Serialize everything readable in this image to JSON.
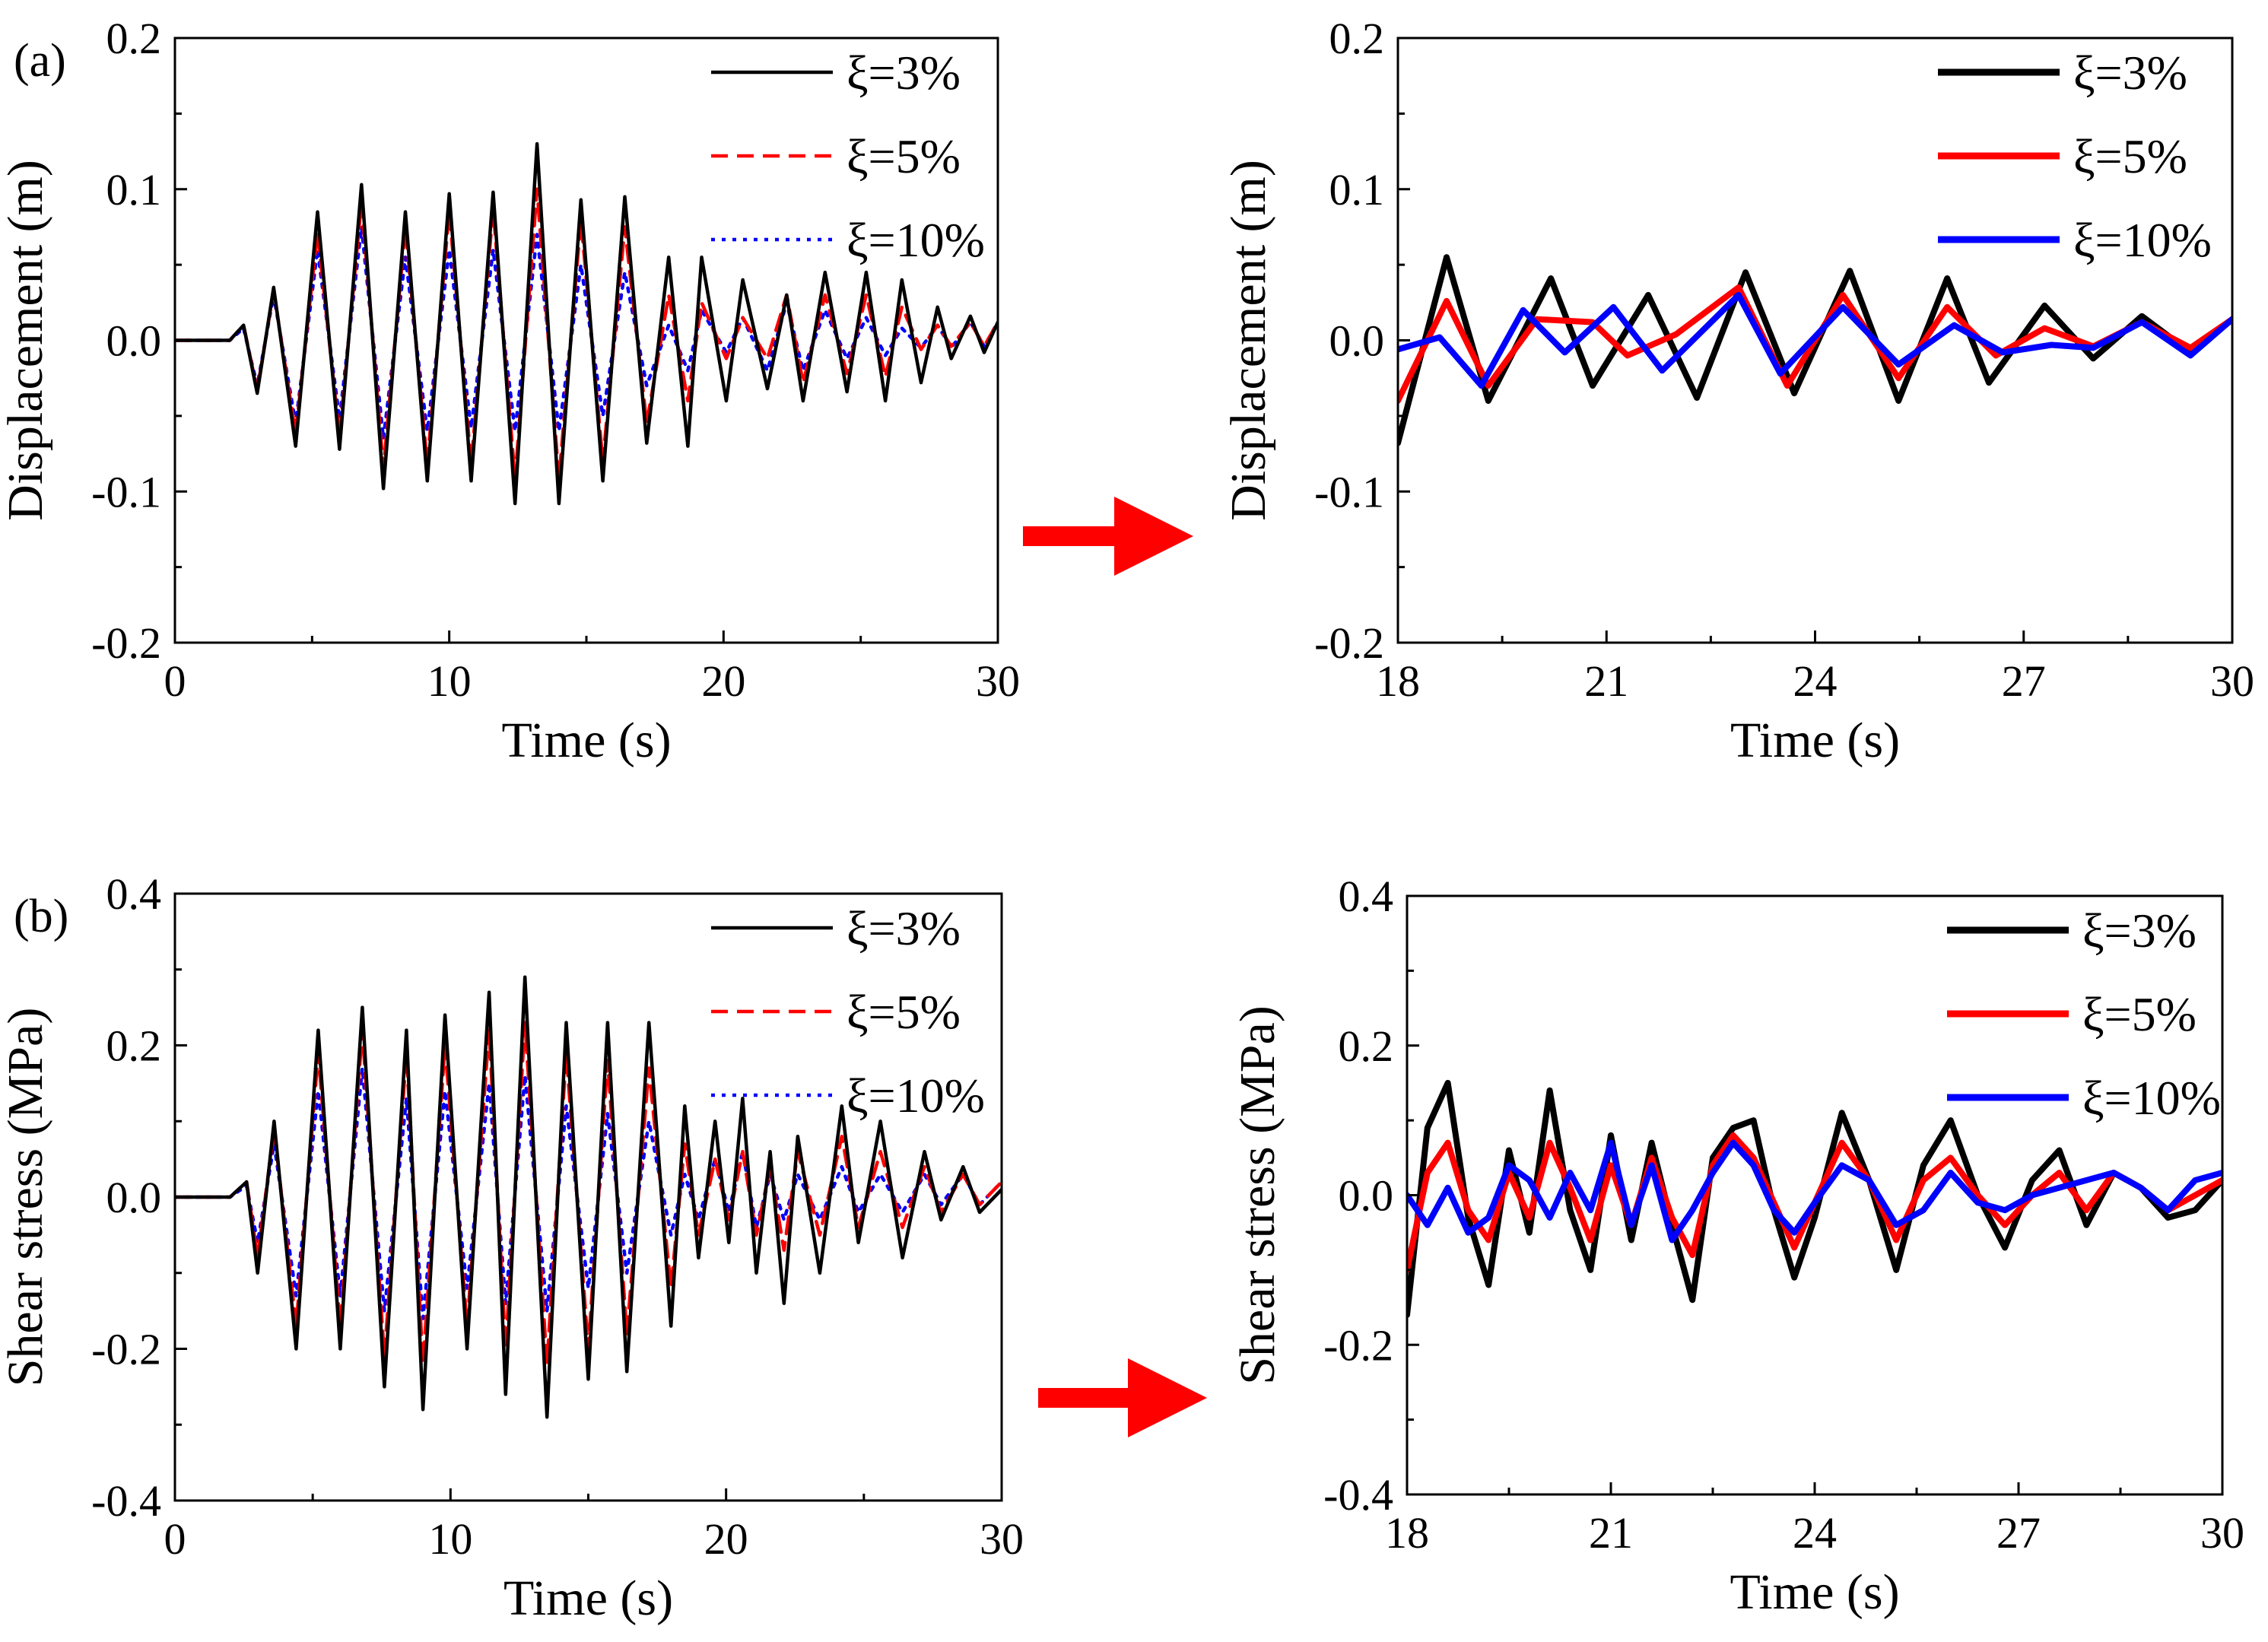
{
  "chart_data": [
    {
      "id": "a-full",
      "panel_label": "(a)",
      "type": "line",
      "xlabel": "Time (s)",
      "ylabel": "Displacement (m)",
      "xlim": [
        0,
        30
      ],
      "ylim": [
        -0.2,
        0.2
      ],
      "xticks": [
        0,
        10,
        20,
        30
      ],
      "xtick_labels": [
        "0",
        "10",
        "20",
        "30"
      ],
      "yticks": [
        -0.2,
        -0.1,
        0.0,
        0.1,
        0.2
      ],
      "ytick_labels": [
        "-0.2",
        "-0.1",
        "0.0",
        "0.1",
        "0.2"
      ],
      "legend": "top-right",
      "grid": false,
      "series": [
        {
          "name": "ξ=3%",
          "color": "#000000",
          "style": "solid",
          "x": [
            0,
            2,
            2.5,
            3,
            3.6,
            4.4,
            5.2,
            6,
            6.8,
            7.6,
            8.4,
            9.2,
            10,
            10.8,
            11.6,
            12.4,
            13.2,
            14,
            14.8,
            15.6,
            16.4,
            17.2,
            18,
            18.7,
            19.2,
            20.1,
            20.7,
            21.6,
            22.3,
            22.9,
            23.7,
            24.5,
            25.2,
            25.9,
            26.5,
            27.2,
            27.8,
            28.3,
            29,
            29.5,
            30
          ],
          "y": [
            0,
            0,
            0.01,
            -0.035,
            0.035,
            -0.07,
            0.085,
            -0.072,
            0.103,
            -0.098,
            0.085,
            -0.093,
            0.097,
            -0.093,
            0.098,
            -0.108,
            0.13,
            -0.108,
            0.093,
            -0.093,
            0.095,
            -0.068,
            0.055,
            -0.07,
            0.055,
            -0.04,
            0.04,
            -0.032,
            0.03,
            -0.04,
            0.045,
            -0.034,
            0.045,
            -0.04,
            0.04,
            -0.028,
            0.022,
            -0.012,
            0.016,
            -0.008,
            0.012
          ]
        },
        {
          "name": "ξ=5%",
          "color": "#ff0000",
          "style": "dashed",
          "x": [
            0,
            2,
            2.5,
            3,
            3.6,
            4.4,
            5.2,
            6,
            6.8,
            7.6,
            8.4,
            9.2,
            10,
            10.8,
            11.6,
            12.4,
            13.2,
            14,
            14.8,
            15.6,
            16.4,
            17.2,
            18,
            18.7,
            19.2,
            20.1,
            20.7,
            21.6,
            22.3,
            22.9,
            23.7,
            24.5,
            25.2,
            25.9,
            26.5,
            27.2,
            27.8,
            28.3,
            29,
            29.5,
            30
          ],
          "y": [
            0,
            0,
            0.01,
            -0.033,
            0.033,
            -0.062,
            0.072,
            -0.064,
            0.092,
            -0.085,
            0.075,
            -0.082,
            0.086,
            -0.082,
            0.087,
            -0.092,
            0.1,
            -0.092,
            0.08,
            -0.08,
            0.075,
            -0.055,
            0.03,
            -0.04,
            0.025,
            -0.012,
            0.015,
            -0.012,
            0.03,
            -0.028,
            0.03,
            -0.022,
            0.03,
            -0.024,
            0.022,
            -0.006,
            0.01,
            -0.004,
            0.012,
            -0.004,
            0.012
          ]
        },
        {
          "name": "ξ=10%",
          "color": "#0000ff",
          "style": "dotted",
          "x": [
            0,
            2,
            2.5,
            3,
            3.6,
            4.4,
            5.2,
            6,
            6.8,
            7.6,
            8.4,
            9.2,
            10,
            10.8,
            11.6,
            12.4,
            13.2,
            14,
            14.8,
            15.6,
            16.4,
            17.2,
            18,
            18.7,
            19.2,
            20.1,
            20.7,
            21.6,
            22.3,
            22.9,
            23.7,
            24.5,
            25.2,
            25.9,
            26.5,
            27.2,
            27.8,
            28.3,
            29,
            29.5,
            30
          ],
          "y": [
            0,
            0,
            0.008,
            -0.03,
            0.03,
            -0.055,
            0.06,
            -0.052,
            0.075,
            -0.065,
            0.055,
            -0.06,
            0.06,
            -0.058,
            0.06,
            -0.06,
            0.07,
            -0.06,
            0.05,
            -0.05,
            0.045,
            -0.03,
            0.01,
            -0.02,
            0.02,
            -0.008,
            0.015,
            -0.02,
            0.025,
            -0.02,
            0.02,
            -0.012,
            0.015,
            -0.01,
            0.008,
            -0.005,
            0.01,
            -0.005,
            0.012,
            -0.004,
            0.012
          ]
        }
      ]
    },
    {
      "id": "a-zoom",
      "type": "line",
      "xlabel": "Time (s)",
      "ylabel": "Displacement (m)",
      "xlim": [
        18,
        30
      ],
      "ylim": [
        -0.2,
        0.2
      ],
      "xticks": [
        18,
        21,
        24,
        27,
        30
      ],
      "xtick_labels": [
        "18",
        "21",
        "24",
        "27",
        "30"
      ],
      "yticks": [
        -0.2,
        -0.1,
        0.0,
        0.1,
        0.2
      ],
      "ytick_labels": [
        "-0.2",
        "-0.1",
        "0.0",
        "0.1",
        "0.2"
      ],
      "legend": "top-right",
      "grid": false,
      "series": [
        {
          "name": "ξ=3%",
          "color": "#000000",
          "style": "solid",
          "x": [
            18,
            18.7,
            19.3,
            20.2,
            20.8,
            21.6,
            22.3,
            23,
            23.7,
            24.5,
            25.2,
            25.9,
            26.5,
            27.3,
            28,
            28.7,
            29.4,
            30
          ],
          "y": [
            -0.068,
            0.055,
            -0.04,
            0.041,
            -0.03,
            0.03,
            -0.038,
            0.045,
            -0.035,
            0.046,
            -0.04,
            0.041,
            -0.028,
            0.023,
            -0.012,
            0.016,
            -0.008,
            0.014
          ]
        },
        {
          "name": "ξ=5%",
          "color": "#ff0000",
          "style": "solid",
          "x": [
            18,
            18.7,
            19.3,
            20,
            20.8,
            21.3,
            22,
            22.9,
            23.6,
            24.4,
            25.2,
            25.9,
            26.6,
            27.3,
            28,
            28.7,
            29.4,
            30
          ],
          "y": [
            -0.04,
            0.026,
            -0.03,
            0.014,
            0.012,
            -0.01,
            0.004,
            0.035,
            -0.03,
            0.03,
            -0.025,
            0.022,
            -0.01,
            0.008,
            -0.004,
            0.012,
            -0.005,
            0.014
          ]
        },
        {
          "name": "ξ=10%",
          "color": "#0000ff",
          "style": "solid",
          "x": [
            18,
            18.6,
            19.2,
            19.8,
            20.4,
            21.1,
            21.8,
            22.9,
            23.5,
            24.4,
            25.2,
            26,
            26.7,
            27.4,
            28,
            28.7,
            29.4,
            30
          ],
          "y": [
            -0.006,
            0.002,
            -0.03,
            0.02,
            -0.008,
            0.022,
            -0.02,
            0.03,
            -0.022,
            0.022,
            -0.016,
            0.01,
            -0.008,
            -0.003,
            -0.005,
            0.012,
            -0.01,
            0.014
          ]
        }
      ]
    },
    {
      "id": "b-full",
      "panel_label": "(b)",
      "type": "line",
      "xlabel": "Time (s)",
      "ylabel": "Shear stress (MPa)",
      "xlim": [
        0,
        30
      ],
      "ylim": [
        -0.4,
        0.4
      ],
      "xticks": [
        0,
        10,
        20,
        30
      ],
      "xtick_labels": [
        "0",
        "10",
        "20",
        "30"
      ],
      "yticks": [
        -0.4,
        -0.2,
        0.0,
        0.2,
        0.4
      ],
      "ytick_labels": [
        "-0.4",
        "-0.2",
        "0.0",
        "0.2",
        "0.4"
      ],
      "legend": "top-right",
      "grid": false,
      "series": [
        {
          "name": "ξ=3%",
          "color": "#000000",
          "style": "solid",
          "x": [
            0,
            2,
            2.6,
            3,
            3.6,
            4.4,
            5.2,
            6,
            6.8,
            7.6,
            8.4,
            9,
            9.8,
            10.6,
            11.4,
            12,
            12.7,
            13.5,
            14.2,
            15,
            15.7,
            16.4,
            17.2,
            18,
            18.5,
            19,
            19.6,
            20.1,
            20.6,
            21.1,
            21.6,
            22.1,
            22.6,
            23.4,
            24.2,
            24.8,
            25.6,
            26.4,
            27.2,
            27.8,
            28.6,
            29.2,
            30
          ],
          "y": [
            0,
            0,
            0.02,
            -0.1,
            0.1,
            -0.2,
            0.22,
            -0.2,
            0.25,
            -0.25,
            0.22,
            -0.28,
            0.24,
            -0.2,
            0.27,
            -0.26,
            0.29,
            -0.29,
            0.23,
            -0.24,
            0.23,
            -0.23,
            0.23,
            -0.17,
            0.12,
            -0.08,
            0.1,
            -0.06,
            0.13,
            -0.1,
            0.06,
            -0.14,
            0.08,
            -0.1,
            0.12,
            -0.06,
            0.1,
            -0.08,
            0.06,
            -0.03,
            0.04,
            -0.02,
            0.01
          ]
        },
        {
          "name": "ξ=5%",
          "color": "#ff0000",
          "style": "dashed",
          "x": [
            0,
            2,
            2.6,
            3,
            3.6,
            4.4,
            5.2,
            6,
            6.8,
            7.6,
            8.4,
            9,
            9.8,
            10.6,
            11.4,
            12,
            12.7,
            13.5,
            14.2,
            15,
            15.7,
            16.4,
            17.2,
            18,
            18.5,
            19,
            19.6,
            20.1,
            20.6,
            21.1,
            21.6,
            22.1,
            22.6,
            23.4,
            24.2,
            24.8,
            25.6,
            26.4,
            27.2,
            27.8,
            28.6,
            29.2,
            30
          ],
          "y": [
            0,
            0,
            0.02,
            -0.08,
            0.09,
            -0.17,
            0.19,
            -0.17,
            0.22,
            -0.21,
            0.19,
            -0.22,
            0.2,
            -0.17,
            0.22,
            -0.2,
            0.23,
            -0.22,
            0.19,
            -0.2,
            0.18,
            -0.18,
            0.17,
            -0.12,
            0.07,
            -0.05,
            0.05,
            -0.03,
            0.06,
            -0.05,
            0.04,
            -0.07,
            0.06,
            -0.05,
            0.08,
            -0.04,
            0.06,
            -0.04,
            0.04,
            -0.02,
            0.03,
            -0.01,
            0.02
          ]
        },
        {
          "name": "ξ=10%",
          "color": "#0000ff",
          "style": "dotted",
          "x": [
            0,
            2,
            2.6,
            3,
            3.6,
            4.4,
            5.2,
            6,
            6.8,
            7.6,
            8.4,
            9,
            9.8,
            10.6,
            11.4,
            12,
            12.7,
            13.5,
            14.2,
            15,
            15.7,
            16.4,
            17.2,
            18,
            18.5,
            19,
            19.6,
            20.1,
            20.6,
            21.1,
            21.6,
            22.1,
            22.6,
            23.4,
            24.2,
            24.8,
            25.6,
            26.4,
            27.2,
            27.8,
            28.6,
            29.2,
            30
          ],
          "y": [
            0,
            0,
            0.015,
            -0.06,
            0.07,
            -0.13,
            0.14,
            -0.13,
            0.17,
            -0.15,
            0.13,
            -0.16,
            0.14,
            -0.12,
            0.15,
            -0.14,
            0.16,
            -0.15,
            0.12,
            -0.12,
            0.11,
            -0.1,
            0.1,
            -0.05,
            0.03,
            -0.03,
            0.05,
            -0.02,
            0.06,
            -0.04,
            0.03,
            -0.03,
            0.03,
            -0.03,
            0.04,
            -0.02,
            0.03,
            -0.02,
            0.03,
            -0.01,
            0.03,
            -0.01,
            0.02
          ]
        }
      ]
    },
    {
      "id": "b-zoom",
      "type": "line",
      "xlabel": "Time (s)",
      "ylabel": "Shear stress (MPa)",
      "xlim": [
        18,
        30
      ],
      "ylim": [
        -0.4,
        0.4
      ],
      "xticks": [
        18,
        21,
        24,
        27,
        30
      ],
      "xtick_labels": [
        "18",
        "21",
        "24",
        "27",
        "30"
      ],
      "yticks": [
        -0.4,
        -0.2,
        0.0,
        0.2,
        0.4
      ],
      "ytick_labels": [
        "-0.4",
        "-0.2",
        "0.0",
        "0.2",
        "0.4"
      ],
      "legend": "top-right",
      "grid": false,
      "series": [
        {
          "name": "ξ=3%",
          "color": "#000000",
          "style": "solid",
          "x": [
            18,
            18.3,
            18.6,
            18.9,
            19.2,
            19.5,
            19.8,
            20.1,
            20.4,
            20.7,
            21,
            21.3,
            21.6,
            21.9,
            22.2,
            22.5,
            22.8,
            23.1,
            23.4,
            23.7,
            24,
            24.4,
            24.8,
            25.2,
            25.6,
            26,
            26.4,
            26.8,
            27.2,
            27.6,
            28,
            28.4,
            28.8,
            29.2,
            29.6,
            30
          ],
          "y": [
            -0.16,
            0.09,
            0.15,
            -0.03,
            -0.12,
            0.06,
            -0.05,
            0.14,
            -0.02,
            -0.1,
            0.08,
            -0.06,
            0.07,
            -0.04,
            -0.14,
            0.05,
            0.09,
            0.1,
            -0.02,
            -0.11,
            -0.03,
            0.11,
            0.02,
            -0.1,
            0.04,
            0.1,
            0.0,
            -0.07,
            0.02,
            0.06,
            -0.04,
            0.03,
            0.01,
            -0.03,
            -0.02,
            0.02
          ]
        },
        {
          "name": "ξ=5%",
          "color": "#ff0000",
          "style": "solid",
          "x": [
            18,
            18.3,
            18.6,
            18.9,
            19.2,
            19.5,
            19.8,
            20.1,
            20.4,
            20.7,
            21,
            21.3,
            21.6,
            21.9,
            22.2,
            22.5,
            22.8,
            23.1,
            23.4,
            23.7,
            24,
            24.4,
            24.8,
            25.2,
            25.6,
            26,
            26.4,
            26.8,
            27.2,
            27.6,
            28,
            28.4,
            28.8,
            29.2,
            29.6,
            30
          ],
          "y": [
            -0.1,
            0.03,
            0.07,
            -0.02,
            -0.06,
            0.03,
            -0.03,
            0.07,
            0.01,
            -0.06,
            0.04,
            -0.04,
            0.05,
            -0.03,
            -0.08,
            0.04,
            0.08,
            0.05,
            -0.01,
            -0.07,
            -0.01,
            0.07,
            0.02,
            -0.06,
            0.02,
            0.05,
            0.0,
            -0.04,
            0.0,
            0.03,
            -0.02,
            0.03,
            0.01,
            -0.02,
            0.0,
            0.02
          ]
        },
        {
          "name": "ξ=10%",
          "color": "#0000ff",
          "style": "solid",
          "x": [
            18,
            18.3,
            18.6,
            18.9,
            19.2,
            19.5,
            19.8,
            20.1,
            20.4,
            20.7,
            21,
            21.3,
            21.6,
            21.9,
            22.2,
            22.5,
            22.8,
            23.1,
            23.4,
            23.7,
            24,
            24.4,
            24.8,
            25.2,
            25.6,
            26,
            26.4,
            26.8,
            27.2,
            27.6,
            28,
            28.4,
            28.8,
            29.2,
            29.6,
            30
          ],
          "y": [
            0.0,
            -0.04,
            0.01,
            -0.05,
            -0.03,
            0.04,
            0.02,
            -0.03,
            0.03,
            -0.02,
            0.07,
            -0.04,
            0.04,
            -0.06,
            -0.02,
            0.03,
            0.07,
            0.04,
            -0.02,
            -0.05,
            -0.01,
            0.04,
            0.02,
            -0.04,
            -0.02,
            0.03,
            -0.01,
            -0.02,
            0.0,
            0.01,
            0.02,
            0.03,
            0.01,
            -0.02,
            0.02,
            0.03
          ]
        }
      ]
    }
  ]
}
